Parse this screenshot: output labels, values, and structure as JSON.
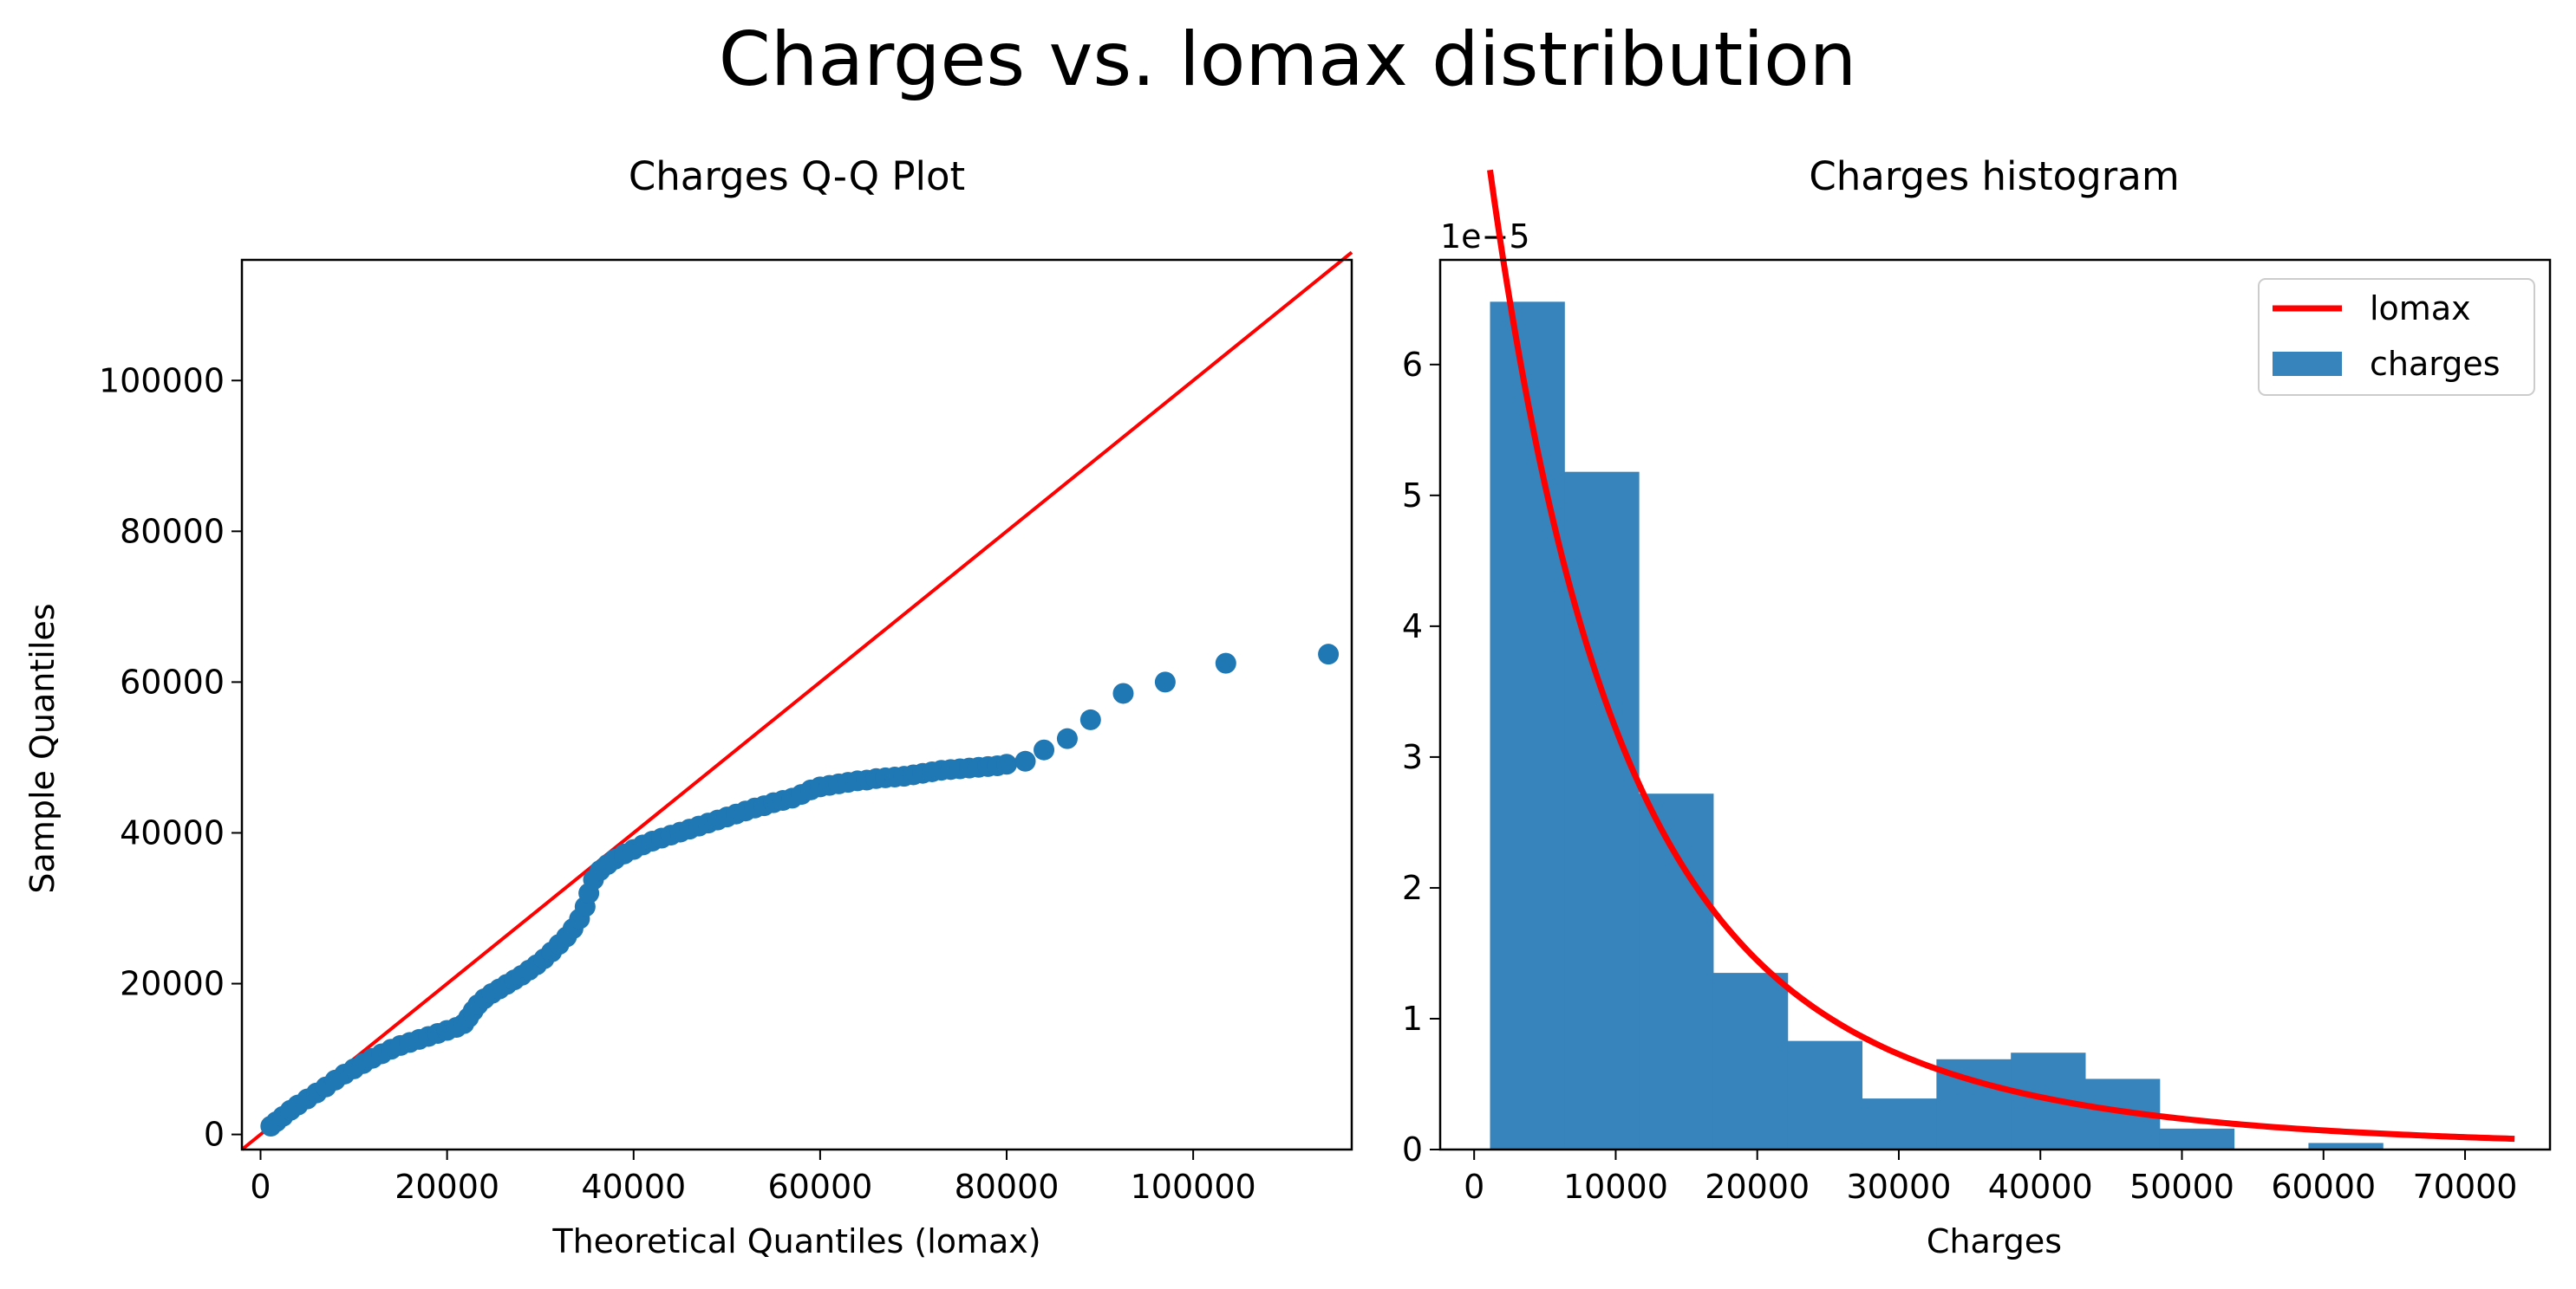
{
  "figure": {
    "suptitle": "Charges vs. lomax distribution"
  },
  "chart_data": [
    {
      "type": "scatter",
      "title": "Charges Q-Q Plot",
      "xlabel": "Theoretical Quantiles (lomax)",
      "ylabel": "Sample Quantiles",
      "xlim": [
        -2000,
        117000
      ],
      "ylim": [
        -2000,
        116000
      ],
      "xticks": [
        0,
        20000,
        40000,
        60000,
        80000,
        100000
      ],
      "xtick_labels": [
        "0",
        "20000",
        "40000",
        "60000",
        "80000",
        "100000"
      ],
      "yticks": [
        0,
        20000,
        40000,
        60000,
        80000,
        100000
      ],
      "ytick_labels": [
        "0",
        "20000",
        "40000",
        "60000",
        "80000",
        "100000"
      ],
      "reference_line": {
        "x": [
          -2000,
          117000
        ],
        "y": [
          -2000,
          117000
        ],
        "color": "#ff0000"
      },
      "marker_color": "#1f77b4",
      "points": [
        [
          1100,
          1100
        ],
        [
          1700,
          1700
        ],
        [
          2400,
          2400
        ],
        [
          3200,
          3200
        ],
        [
          4000,
          3900
        ],
        [
          5000,
          4700
        ],
        [
          6000,
          5500
        ],
        [
          7000,
          6300
        ],
        [
          8000,
          7200
        ],
        [
          9000,
          8000
        ],
        [
          10000,
          8700
        ],
        [
          11000,
          9400
        ],
        [
          12000,
          10100
        ],
        [
          13000,
          10700
        ],
        [
          14000,
          11300
        ],
        [
          15000,
          11800
        ],
        [
          16000,
          12200
        ],
        [
          17000,
          12600
        ],
        [
          18000,
          13000
        ],
        [
          19000,
          13400
        ],
        [
          20000,
          13800
        ],
        [
          21000,
          14200
        ],
        [
          21800,
          14700
        ],
        [
          22300,
          15500
        ],
        [
          22800,
          16400
        ],
        [
          23300,
          17200
        ],
        [
          24000,
          18000
        ],
        [
          24800,
          18700
        ],
        [
          25600,
          19300
        ],
        [
          26400,
          19900
        ],
        [
          27200,
          20500
        ],
        [
          28000,
          21100
        ],
        [
          28800,
          21800
        ],
        [
          29600,
          22500
        ],
        [
          30400,
          23300
        ],
        [
          31200,
          24200
        ],
        [
          32000,
          25200
        ],
        [
          32800,
          26200
        ],
        [
          33500,
          27300
        ],
        [
          34200,
          28600
        ],
        [
          34800,
          30200
        ],
        [
          35200,
          32000
        ],
        [
          35700,
          33800
        ],
        [
          36400,
          35000
        ],
        [
          37200,
          35800
        ],
        [
          38000,
          36500
        ],
        [
          39000,
          37200
        ],
        [
          40000,
          37800
        ],
        [
          41000,
          38400
        ],
        [
          42000,
          38900
        ],
        [
          43000,
          39300
        ],
        [
          44000,
          39700
        ],
        [
          45000,
          40100
        ],
        [
          46000,
          40500
        ],
        [
          47000,
          40900
        ],
        [
          48000,
          41300
        ],
        [
          49000,
          41700
        ],
        [
          50000,
          42100
        ],
        [
          51000,
          42500
        ],
        [
          52000,
          42900
        ],
        [
          53000,
          43300
        ],
        [
          54000,
          43600
        ],
        [
          55000,
          44000
        ],
        [
          56000,
          44300
        ],
        [
          57000,
          44600
        ],
        [
          58000,
          45100
        ],
        [
          59000,
          45700
        ],
        [
          60000,
          46100
        ],
        [
          61000,
          46300
        ],
        [
          62000,
          46500
        ],
        [
          63000,
          46700
        ],
        [
          64000,
          46900
        ],
        [
          65000,
          47000
        ],
        [
          66000,
          47200
        ],
        [
          67000,
          47300
        ],
        [
          68000,
          47400
        ],
        [
          69000,
          47500
        ],
        [
          70000,
          47700
        ],
        [
          71000,
          47900
        ],
        [
          72000,
          48100
        ],
        [
          73000,
          48300
        ],
        [
          74000,
          48400
        ],
        [
          75000,
          48500
        ],
        [
          76000,
          48600
        ],
        [
          77000,
          48700
        ],
        [
          78000,
          48800
        ],
        [
          79000,
          48900
        ],
        [
          80000,
          49100
        ],
        [
          82000,
          49500
        ],
        [
          84000,
          51000
        ],
        [
          86500,
          52500
        ],
        [
          89000,
          55000
        ],
        [
          92500,
          58500
        ],
        [
          97000,
          60000
        ],
        [
          103500,
          62500
        ],
        [
          114500,
          63700
        ]
      ]
    },
    {
      "type": "bar",
      "title": "Charges histogram",
      "xlabel": "Charges",
      "ylabel": "",
      "offset_text": "1e−5",
      "xlim": [
        -2400,
        76000
      ],
      "ylim": [
        0,
        6.8
      ],
      "xticks": [
        0,
        10000,
        20000,
        30000,
        40000,
        50000,
        60000,
        70000
      ],
      "xtick_labels": [
        "0",
        "10000",
        "20000",
        "30000",
        "40000",
        "50000",
        "60000",
        "70000"
      ],
      "yticks": [
        0,
        1,
        2,
        3,
        4,
        5,
        6
      ],
      "ytick_labels": [
        "0",
        "1",
        "2",
        "3",
        "4",
        "5",
        "6"
      ],
      "bar_color": "#3783bb",
      "bin_edges": [
        1122,
        6378,
        11634,
        16890,
        22146,
        27402,
        32658,
        37914,
        43170,
        48426,
        53682,
        58938,
        64194
      ],
      "values": [
        6.48,
        5.18,
        2.72,
        1.35,
        0.83,
        0.39,
        0.69,
        0.74,
        0.54,
        0.16,
        0.0,
        0.05
      ],
      "curve": {
        "name": "lomax",
        "color": "#ff0000",
        "x_start": 1122,
        "x_end": 73500,
        "c": 3.75,
        "scale": 44500
      },
      "legend": {
        "position": "upper right",
        "entries": [
          {
            "label": "lomax",
            "kind": "line",
            "color": "#ff0000"
          },
          {
            "label": "charges",
            "kind": "patch",
            "color": "#3783bb"
          }
        ]
      }
    }
  ]
}
